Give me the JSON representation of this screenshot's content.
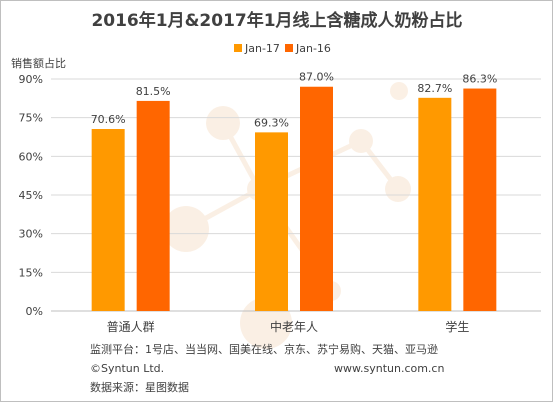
{
  "chart_data": {
    "type": "bar",
    "title": "2016年1月&2017年1月线上含糖成人奶粉占比",
    "ylabel": "销售额占比",
    "xlabel": "",
    "categories": [
      "普通人群",
      "中老年人",
      "学生"
    ],
    "series": [
      {
        "name": "Jan-17",
        "values": [
          70.6,
          69.3,
          82.7
        ],
        "labels": [
          "70.6%",
          "69.3%",
          "82.7%"
        ],
        "color": "#FF9900"
      },
      {
        "name": "Jan-16",
        "values": [
          81.5,
          87.0,
          86.3
        ],
        "labels": [
          "81.5%",
          "87.0%",
          "86.3%"
        ],
        "color": "#FF6600"
      }
    ],
    "ylim": [
      0,
      90
    ],
    "yticks": [
      0,
      15,
      30,
      45,
      60,
      75,
      90
    ],
    "ytick_labels": [
      "0%",
      "15%",
      "30%",
      "45%",
      "60%",
      "75%",
      "90%"
    ],
    "grid": true,
    "legend": "top-center"
  },
  "footer": {
    "platforms": "监测平台：1号店、当当网、国美在线、京东、苏宁易购、天猫、亚马逊",
    "copyright": "©Syntun Ltd.",
    "website": "www.syntun.com.cn",
    "source": "数据来源：星图数据"
  }
}
